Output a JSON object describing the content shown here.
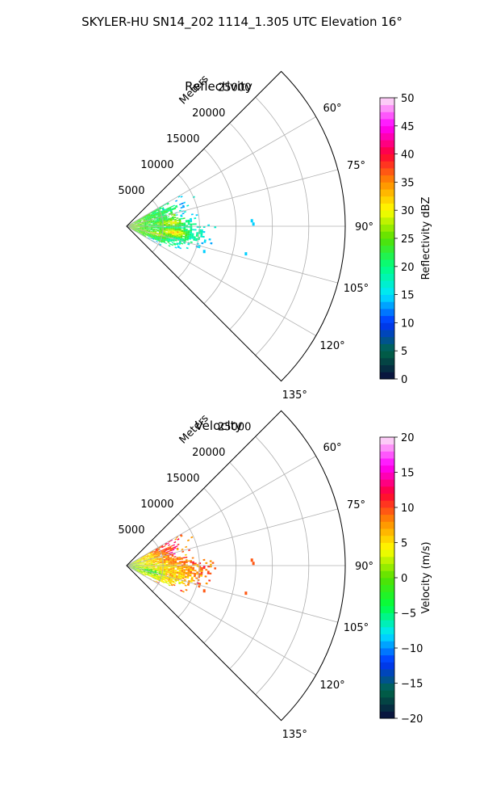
{
  "suptitle": "SKYLER-HU  SN14_202  1114_1.305 UTC Elevation 16°",
  "chart_data": [
    {
      "type": "heatmap",
      "projection": "polar-sector",
      "title": "Reflectivity",
      "radial_axis_label": "Meters",
      "radial_ticks": [
        5000,
        10000,
        15000,
        20000,
        25000
      ],
      "radial_tick_labels": [
        "5000",
        "10000",
        "15000",
        "20000",
        "25000"
      ],
      "radial_range": [
        0,
        30000
      ],
      "azimuth_range_deg": [
        45,
        135
      ],
      "azimuth_ticks_deg": [
        60,
        75,
        90,
        105,
        120,
        135
      ],
      "azimuth_tick_labels": [
        "60°",
        "75°",
        "90°",
        "105°",
        "120°",
        "135°"
      ],
      "grid": true,
      "colorbar": {
        "label": "Reflectivity dBZ",
        "vmin": 0,
        "vmax": 50,
        "ticks": [
          0,
          5,
          10,
          15,
          20,
          25,
          30,
          35,
          40,
          45,
          50
        ],
        "tick_labels": [
          "0",
          "5",
          "10",
          "15",
          "20",
          "25",
          "30",
          "35",
          "40",
          "45",
          "50"
        ],
        "stops": [
          "#0a0a3c",
          "#006648",
          "#0033ff",
          "#00e6ff",
          "#00ff80",
          "#55e000",
          "#ffff00",
          "#ff8c00",
          "#ff0033",
          "#ff00ff",
          "#fce8f6"
        ],
        "levels": 40
      },
      "echo": {
        "sector_deg": [
          60,
          120
        ],
        "max_range_m": 14000,
        "near_value": 26,
        "mid_value": 21,
        "far_value": 15,
        "scatter_value": 14,
        "hot_spots": [
          {
            "range_m": 6000,
            "az_deg": 85,
            "value": 30
          },
          {
            "range_m": 6500,
            "az_deg": 97,
            "value": 33
          },
          {
            "range_m": 4000,
            "az_deg": 104,
            "value": 28
          },
          {
            "range_m": 7000,
            "az_deg": 76,
            "value": 26
          }
        ]
      }
    },
    {
      "type": "heatmap",
      "projection": "polar-sector",
      "title": "Velocity",
      "radial_axis_label": "Meters",
      "radial_ticks": [
        5000,
        10000,
        15000,
        20000,
        25000
      ],
      "radial_tick_labels": [
        "5000",
        "10000",
        "15000",
        "20000",
        "25000"
      ],
      "radial_range": [
        0,
        30000
      ],
      "azimuth_range_deg": [
        45,
        135
      ],
      "azimuth_ticks_deg": [
        60,
        75,
        90,
        105,
        120,
        135
      ],
      "azimuth_tick_labels": [
        "60°",
        "75°",
        "90°",
        "105°",
        "120°",
        "135°"
      ],
      "grid": true,
      "colorbar": {
        "label": "Velocity (m/s)",
        "vmin": -20,
        "vmax": 20,
        "ticks": [
          -20,
          -15,
          -10,
          -5,
          0,
          5,
          10,
          15,
          20
        ],
        "tick_labels": [
          "−20",
          "−15",
          "−10",
          "−5",
          "0",
          "5",
          "10",
          "15",
          "20"
        ],
        "stops": [
          "#0a0a3c",
          "#006648",
          "#0033ff",
          "#00e6ff",
          "#00ff40",
          "#55e000",
          "#ffff00",
          "#ff8c00",
          "#ff0033",
          "#ff00ff",
          "#fce8f6"
        ],
        "levels": 40
      },
      "echo": {
        "sector_deg": [
          60,
          120
        ],
        "max_range_m": 14000,
        "near_value": 1,
        "mid_value": 6,
        "far_value": 11,
        "scatter_value": 9,
        "left_bias": 6,
        "right_bias": -4,
        "hot_spots": [
          {
            "range_m": 7500,
            "az_deg": 73,
            "value": 15
          },
          {
            "range_m": 3000,
            "az_deg": 103,
            "value": -3
          }
        ]
      }
    }
  ]
}
